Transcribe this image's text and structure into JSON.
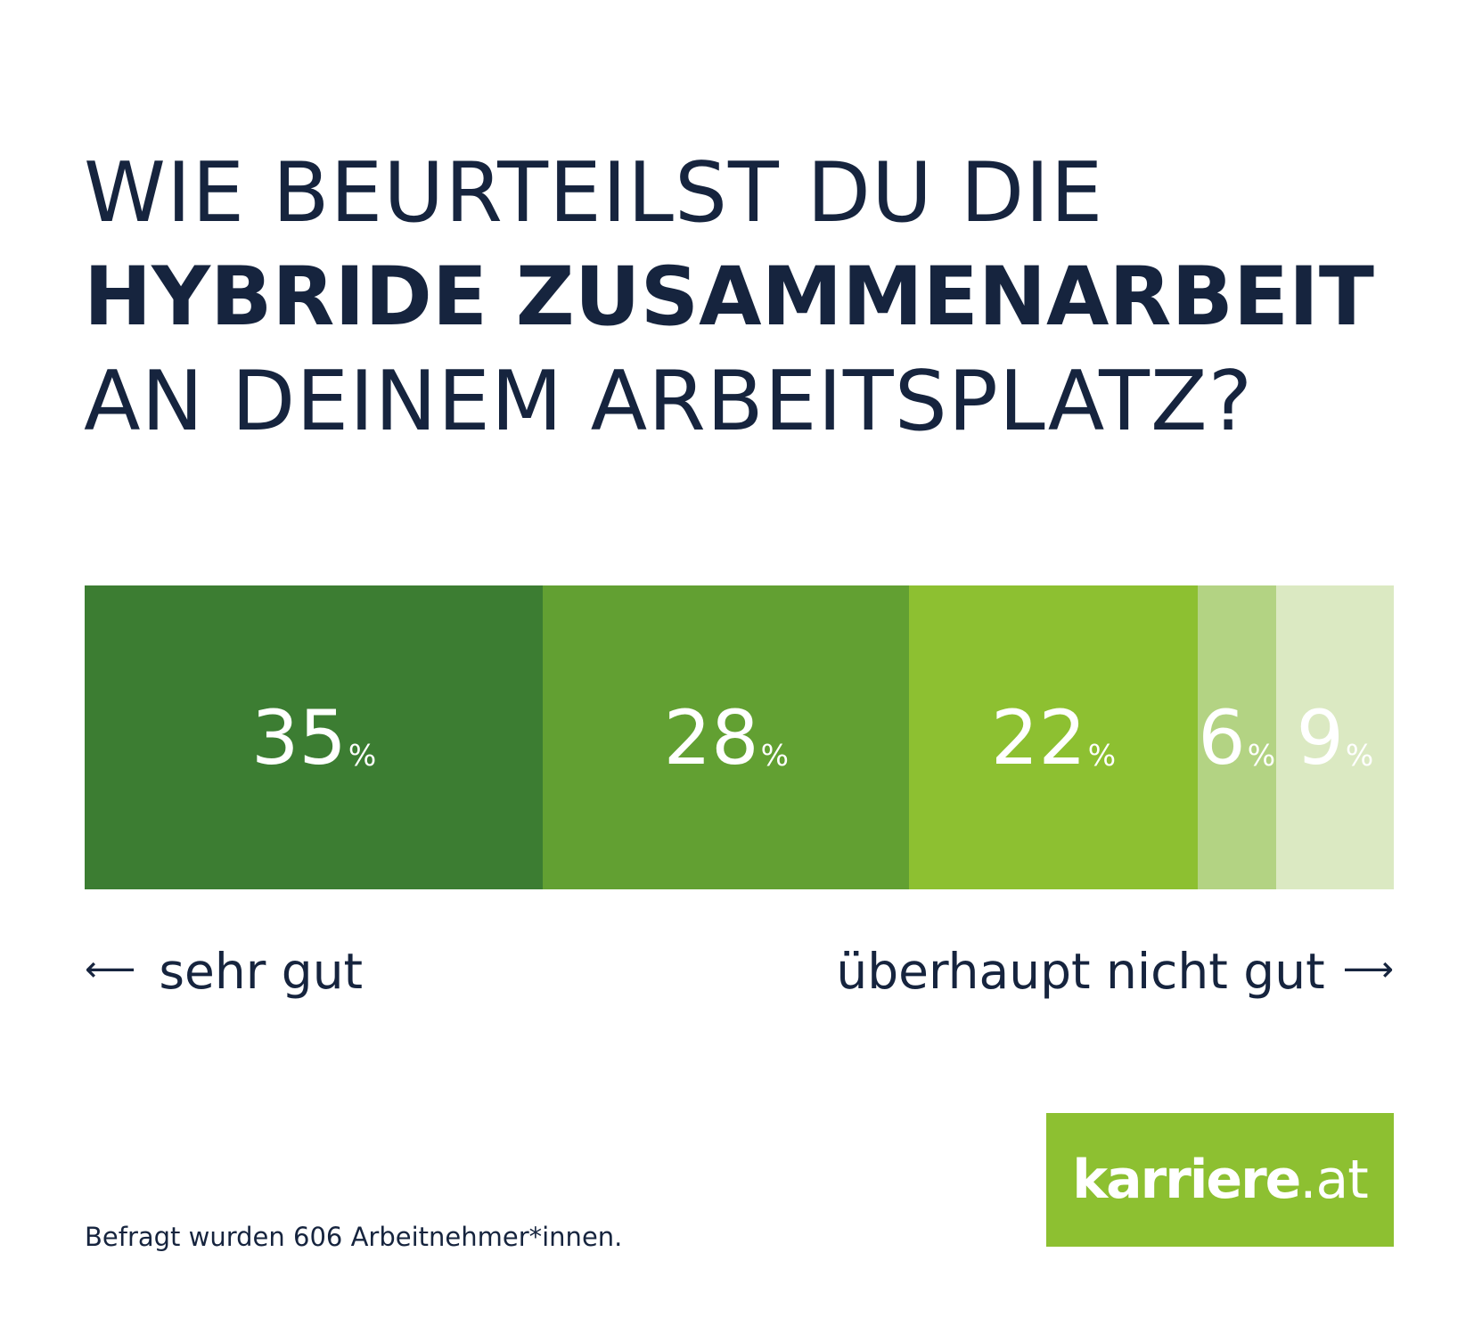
{
  "header": {
    "title_line1": "WIE BEURTEILST DU DIE",
    "title_line2": "HYBRIDE ZUSAMMENARBEIT",
    "title_line3": "AN DEINEM ARBEITSPLATZ?"
  },
  "scale": {
    "left_label": "sehr gut",
    "right_label": "überhaupt nicht gut",
    "left_arrow_icon": "arrow-left-icon",
    "right_arrow_icon": "arrow-right-icon"
  },
  "chart_data": {
    "type": "bar",
    "orientation": "horizontal-stacked",
    "unit": "%",
    "total": 100,
    "segments": [
      {
        "label": "35",
        "value": 35,
        "color": "#3c7d32"
      },
      {
        "label": "28",
        "value": 28,
        "color": "#62a032"
      },
      {
        "label": "22",
        "value": 22,
        "color": "#8dc031"
      },
      {
        "label": "6",
        "value": 6,
        "color": "#b3d383"
      },
      {
        "label": "9",
        "value": 9,
        "color": "#dbe9c2"
      }
    ]
  },
  "footnote": "Befragt wurden 606 Arbeitnehmer*innen.",
  "logo": {
    "brand": "karriere",
    "tld": ".at",
    "color": "#8dc031"
  },
  "colors": {
    "text": "#16243e",
    "background": "#ffffff"
  }
}
